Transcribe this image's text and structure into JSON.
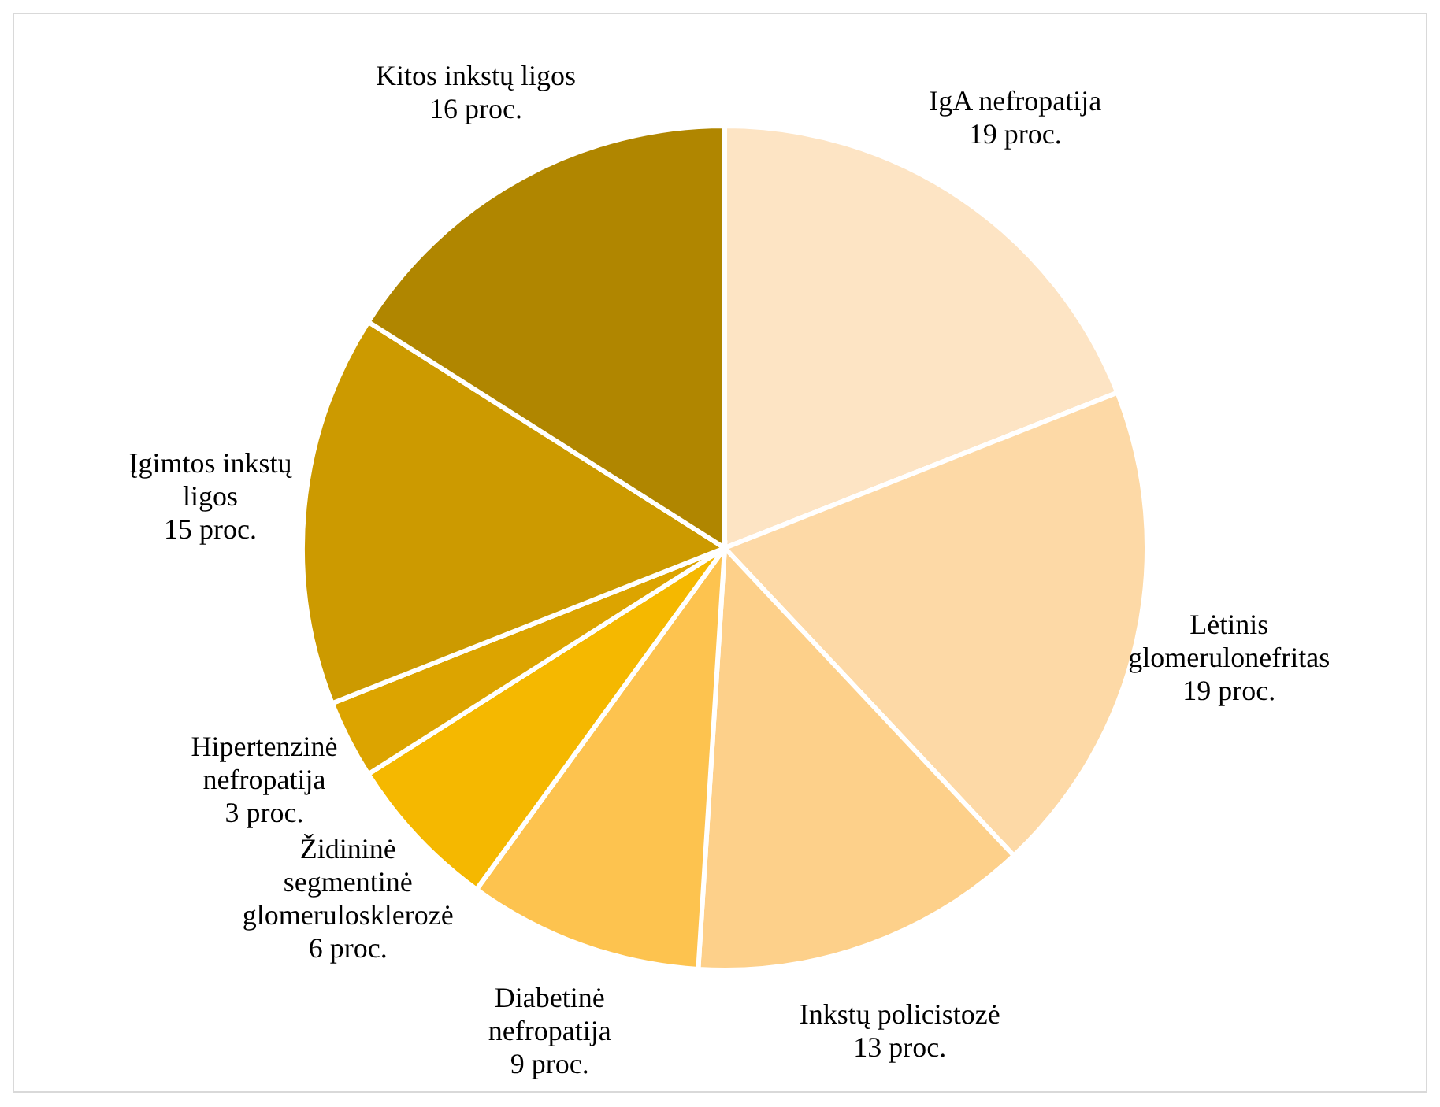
{
  "chart_data": {
    "type": "pie",
    "categories": [
      "IgA nefropatija",
      "Lėtinis glomerulonefritas",
      "Inkstų policistozė",
      "Diabetinė nefropatija",
      "Židininė segmentinė glomerulosklerozė",
      "Hipertenzinė nefropatija",
      "Įgimtos inkstų ligos",
      "Kitos inkstų ligos"
    ],
    "values": [
      19,
      19,
      13,
      9,
      6,
      3,
      15,
      16
    ],
    "value_labels": [
      "19 proc.",
      "19 proc.",
      "13 proc.",
      "9 proc.",
      "6 proc.",
      "3 proc.",
      "15 proc.",
      "16 proc."
    ],
    "colors": [
      "#fde4c4",
      "#fdd9a6",
      "#fdd08a",
      "#fdc34f",
      "#f5b800",
      "#dca400",
      "#cc9a00",
      "#b08600"
    ]
  }
}
